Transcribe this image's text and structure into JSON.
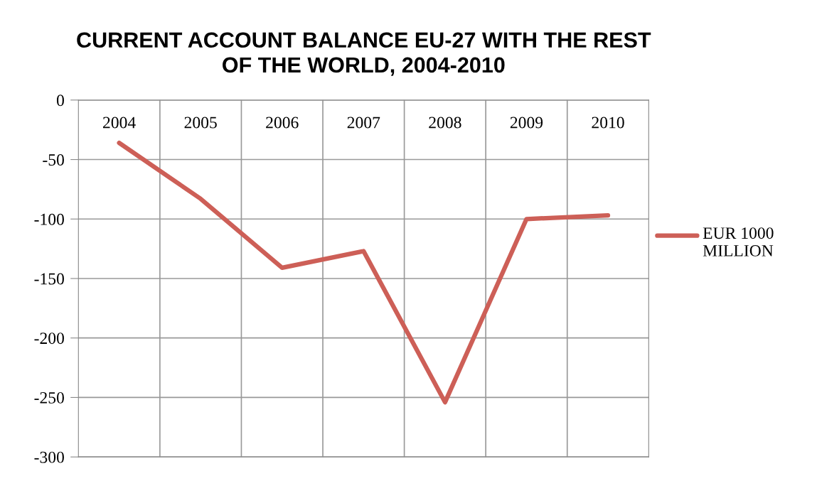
{
  "chart_data": {
    "type": "line",
    "title": "CURRENT ACCOUNT BALANCE EU-27 WITH THE REST\nOF THE WORLD, 2004-2010",
    "categories": [
      "2004",
      "2005",
      "2006",
      "2007",
      "2008",
      "2009",
      "2010"
    ],
    "series": [
      {
        "name": "EUR 1000 MILLION",
        "color": "#cd5f57",
        "values": [
          -36,
          -83,
          -141,
          -127,
          -254,
          -100,
          -97
        ]
      }
    ],
    "ylim": [
      -300,
      0
    ],
    "yticks": [
      -300,
      -250,
      -200,
      -150,
      -100,
      -50,
      0
    ],
    "grid": true,
    "legend": "right",
    "marker": "none",
    "line_style": "solid"
  }
}
